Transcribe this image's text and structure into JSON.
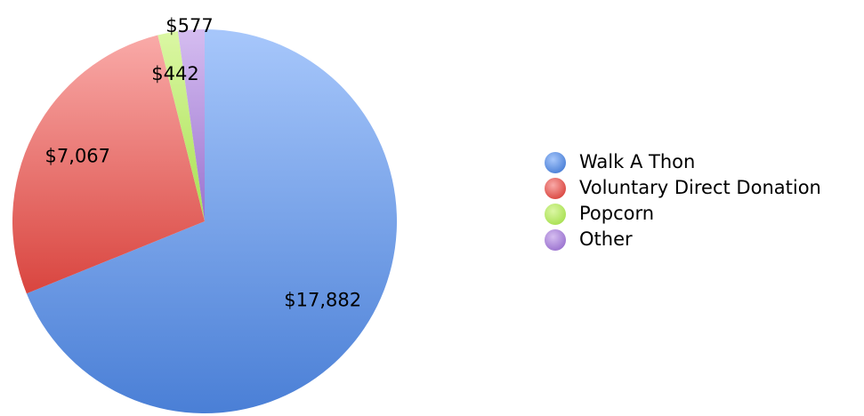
{
  "chart_data": {
    "type": "pie",
    "categories": [
      "Walk A Thon",
      "Voluntary Direct Donation",
      "Popcorn",
      "Other"
    ],
    "values": [
      17882,
      7067,
      442,
      577
    ],
    "data_labels": [
      "$17,882",
      "$7,067",
      "$442",
      "$577"
    ],
    "title": "",
    "legend_position": "right",
    "colors": {
      "Walk A Thon": [
        "#a7c7fb",
        "#4a7fd6"
      ],
      "Voluntary Direct Donation": [
        "#f9aaa8",
        "#d9453f"
      ],
      "Popcorn": [
        "#dbf7a4",
        "#a8e052"
      ],
      "Other": [
        "#d5bdf0",
        "#9a72cf"
      ]
    }
  }
}
